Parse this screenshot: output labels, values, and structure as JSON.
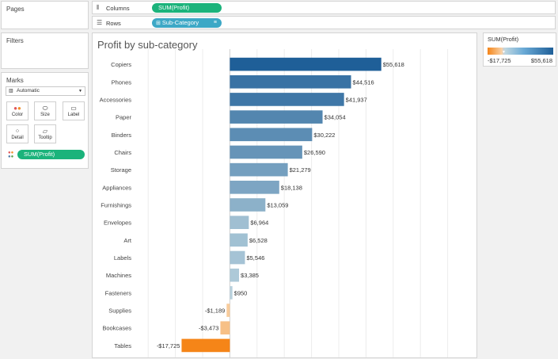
{
  "cards": {
    "pages": "Pages",
    "filters": "Filters",
    "marks": "Marks"
  },
  "shelves": {
    "columns": {
      "label": "Columns",
      "pill": "SUM(Profit)"
    },
    "rows": {
      "label": "Rows",
      "pill": "Sub-Category"
    }
  },
  "marks": {
    "type": "Automatic",
    "buttons": [
      {
        "label": "Color",
        "icon": "color-dots-icon"
      },
      {
        "label": "Size",
        "icon": "size-icon"
      },
      {
        "label": "Label",
        "icon": "label-icon"
      },
      {
        "label": "Detail",
        "icon": "detail-icon"
      },
      {
        "label": "Tooltip",
        "icon": "tooltip-icon"
      }
    ],
    "color_pill": "SUM(Profit)"
  },
  "legend": {
    "title": "SUM(Profit)",
    "min_label": "-$17,725",
    "max_label": "$55,618",
    "neg_color": "#f58518",
    "pos_color": "#1f5f98"
  },
  "chart_data": {
    "type": "bar",
    "title": "Profit by sub-category",
    "categories": [
      "Copiers",
      "Phones",
      "Accessories",
      "Paper",
      "Binders",
      "Chairs",
      "Storage",
      "Appliances",
      "Furnishings",
      "Envelopes",
      "Art",
      "Labels",
      "Machines",
      "Fasteners",
      "Supplies",
      "Bookcases",
      "Tables"
    ],
    "values": [
      55618,
      44516,
      41937,
      34054,
      30222,
      26590,
      21279,
      18138,
      13059,
      6964,
      6528,
      5546,
      3385,
      950,
      -1189,
      -3473,
      -17725
    ],
    "value_labels": [
      "$55,618",
      "$44,516",
      "$41,937",
      "$34,054",
      "$30,222",
      "$26,590",
      "$21,279",
      "$18,138",
      "$13,059",
      "$6,964",
      "$6,528",
      "$5,546",
      "$3,385",
      "$950",
      "-$1,189",
      "-$3,473",
      "-$17,725"
    ],
    "xlim": [
      -35000,
      90000
    ],
    "grid": true
  }
}
